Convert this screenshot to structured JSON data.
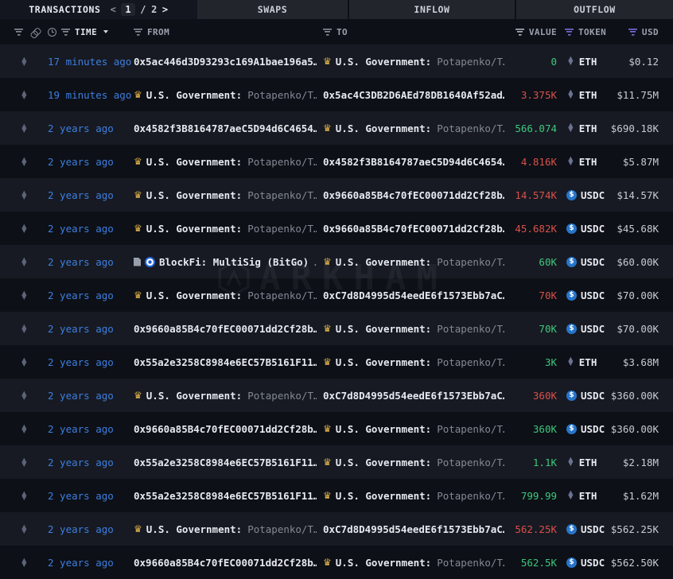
{
  "tabs": {
    "transactions": "TRANSACTIONS",
    "swaps": "SWAPS",
    "inflow": "INFLOW",
    "outflow": "OUTFLOW"
  },
  "pagination": {
    "current": "1",
    "separator": "/",
    "total": "2"
  },
  "columns": {
    "time": "TIME",
    "from": "FROM",
    "to": "TO",
    "value": "VALUE",
    "token": "TOKEN",
    "usd": "USD"
  },
  "watermark": {
    "text": "ARKHAM"
  },
  "colors": {
    "purple": "#7b6ce0",
    "green": "#3cc77d",
    "red": "#d9504b",
    "blue": "#3d7ee0",
    "usdc": "#2775ca"
  },
  "icons": {
    "chain": "ethereum-chain-icon",
    "entity_badge": "crown-icon",
    "contract": "document-icon",
    "blockfi": "blockfi-logo-icon",
    "eth_token": "eth-icon",
    "usdc_token": "usdc-icon"
  },
  "table": {
    "rows": [
      {
        "time": "17 minutes ago",
        "from": {
          "type": "address",
          "text": "0x5ac446d3D93293c169A1bae196a5…"
        },
        "to": {
          "type": "entity",
          "icons": [
            "crown"
          ],
          "label": "U.S. Government:",
          "sub": "Potapenko/T…"
        },
        "value": "0",
        "dir": "in",
        "token": "ETH",
        "usd": "$0.12"
      },
      {
        "time": "19 minutes ago",
        "from": {
          "type": "entity",
          "icons": [
            "crown"
          ],
          "label": "U.S. Government:",
          "sub": "Potapenko/T…"
        },
        "to": {
          "type": "address",
          "text": "0x5ac4C3DB2D6AEd78DB1640Af52ad…"
        },
        "value": "3.375K",
        "dir": "out",
        "token": "ETH",
        "usd": "$11.75M"
      },
      {
        "time": "2 years ago",
        "from": {
          "type": "address",
          "text": "0x4582f3B8164787aeC5D94d6C4654…"
        },
        "to": {
          "type": "entity",
          "icons": [
            "crown"
          ],
          "label": "U.S. Government:",
          "sub": "Potapenko/T…"
        },
        "value": "566.074",
        "dir": "in",
        "token": "ETH",
        "usd": "$690.18K"
      },
      {
        "time": "2 years ago",
        "from": {
          "type": "entity",
          "icons": [
            "crown"
          ],
          "label": "U.S. Government:",
          "sub": "Potapenko/T…"
        },
        "to": {
          "type": "address",
          "text": "0x4582f3B8164787aeC5D94d6C4654…"
        },
        "value": "4.816K",
        "dir": "out",
        "token": "ETH",
        "usd": "$5.87M"
      },
      {
        "time": "2 years ago",
        "from": {
          "type": "entity",
          "icons": [
            "crown"
          ],
          "label": "U.S. Government:",
          "sub": "Potapenko/T…"
        },
        "to": {
          "type": "address",
          "text": "0x9660a85B4c70fEC00071dd2Cf28b…"
        },
        "value": "14.574K",
        "dir": "out",
        "token": "USDC",
        "usd": "$14.57K"
      },
      {
        "time": "2 years ago",
        "from": {
          "type": "entity",
          "icons": [
            "crown"
          ],
          "label": "U.S. Government:",
          "sub": "Potapenko/T…"
        },
        "to": {
          "type": "address",
          "text": "0x9660a85B4c70fEC00071dd2Cf28b…"
        },
        "value": "45.682K",
        "dir": "out",
        "token": "USDC",
        "usd": "$45.68K"
      },
      {
        "time": "2 years ago",
        "from": {
          "type": "entity",
          "icons": [
            "doc",
            "blockfi"
          ],
          "label": "BlockFi: MultiSig (BitGo)",
          "sub": "…"
        },
        "to": {
          "type": "entity",
          "icons": [
            "crown"
          ],
          "label": "U.S. Government:",
          "sub": "Potapenko/T…"
        },
        "value": "60K",
        "dir": "in",
        "token": "USDC",
        "usd": "$60.00K"
      },
      {
        "time": "2 years ago",
        "from": {
          "type": "entity",
          "icons": [
            "crown"
          ],
          "label": "U.S. Government:",
          "sub": "Potapenko/T…"
        },
        "to": {
          "type": "address",
          "text": "0xC7d8D4995d54eedE6f1573Ebb7aC…"
        },
        "value": "70K",
        "dir": "out",
        "token": "USDC",
        "usd": "$70.00K"
      },
      {
        "time": "2 years ago",
        "from": {
          "type": "address",
          "text": "0x9660a85B4c70fEC00071dd2Cf28b…"
        },
        "to": {
          "type": "entity",
          "icons": [
            "crown"
          ],
          "label": "U.S. Government:",
          "sub": "Potapenko/T…"
        },
        "value": "70K",
        "dir": "in",
        "token": "USDC",
        "usd": "$70.00K"
      },
      {
        "time": "2 years ago",
        "from": {
          "type": "address",
          "text": "0x55a2e3258C8984e6EC57B5161F11…"
        },
        "to": {
          "type": "entity",
          "icons": [
            "crown"
          ],
          "label": "U.S. Government:",
          "sub": "Potapenko/T…"
        },
        "value": "3K",
        "dir": "in",
        "token": "ETH",
        "usd": "$3.68M"
      },
      {
        "time": "2 years ago",
        "from": {
          "type": "entity",
          "icons": [
            "crown"
          ],
          "label": "U.S. Government:",
          "sub": "Potapenko/T…"
        },
        "to": {
          "type": "address",
          "text": "0xC7d8D4995d54eedE6f1573Ebb7aC…"
        },
        "value": "360K",
        "dir": "out",
        "token": "USDC",
        "usd": "$360.00K"
      },
      {
        "time": "2 years ago",
        "from": {
          "type": "address",
          "text": "0x9660a85B4c70fEC00071dd2Cf28b…"
        },
        "to": {
          "type": "entity",
          "icons": [
            "crown"
          ],
          "label": "U.S. Government:",
          "sub": "Potapenko/T…"
        },
        "value": "360K",
        "dir": "in",
        "token": "USDC",
        "usd": "$360.00K"
      },
      {
        "time": "2 years ago",
        "from": {
          "type": "address",
          "text": "0x55a2e3258C8984e6EC57B5161F11…"
        },
        "to": {
          "type": "entity",
          "icons": [
            "crown"
          ],
          "label": "U.S. Government:",
          "sub": "Potapenko/T…"
        },
        "value": "1.1K",
        "dir": "in",
        "token": "ETH",
        "usd": "$2.18M"
      },
      {
        "time": "2 years ago",
        "from": {
          "type": "address",
          "text": "0x55a2e3258C8984e6EC57B5161F11…"
        },
        "to": {
          "type": "entity",
          "icons": [
            "crown"
          ],
          "label": "U.S. Government:",
          "sub": "Potapenko/T…"
        },
        "value": "799.99",
        "dir": "in",
        "token": "ETH",
        "usd": "$1.62M"
      },
      {
        "time": "2 years ago",
        "from": {
          "type": "entity",
          "icons": [
            "crown"
          ],
          "label": "U.S. Government:",
          "sub": "Potapenko/T…"
        },
        "to": {
          "type": "address",
          "text": "0xC7d8D4995d54eedE6f1573Ebb7aC…"
        },
        "value": "562.25K",
        "dir": "out",
        "token": "USDC",
        "usd": "$562.25K"
      },
      {
        "time": "2 years ago",
        "from": {
          "type": "address",
          "text": "0x9660a85B4c70fEC00071dd2Cf28b…"
        },
        "to": {
          "type": "entity",
          "icons": [
            "crown"
          ],
          "label": "U.S. Government:",
          "sub": "Potapenko/T…"
        },
        "value": "562.5K",
        "dir": "in",
        "token": "USDC",
        "usd": "$562.50K"
      }
    ]
  }
}
